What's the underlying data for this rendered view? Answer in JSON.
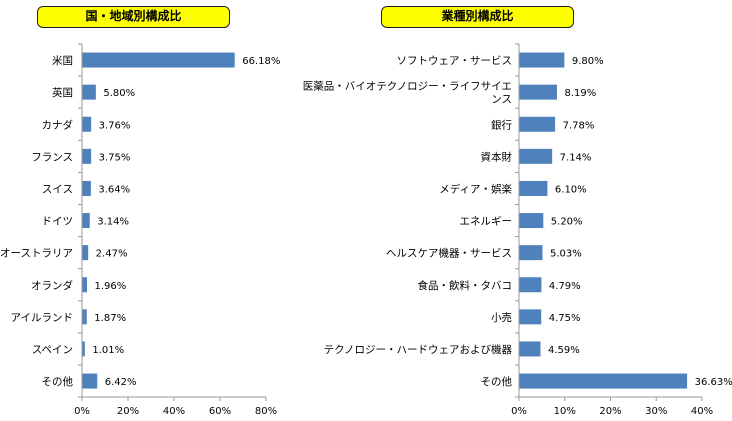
{
  "chart_data": [
    {
      "type": "bar",
      "orientation": "horizontal",
      "title": "国・地域別構成比",
      "categories": [
        "米国",
        "英国",
        "カナダ",
        "フランス",
        "スイス",
        "ドイツ",
        "オーストラリア",
        "オランダ",
        "アイルランド",
        "スペイン",
        "その他"
      ],
      "values": [
        66.18,
        5.8,
        3.76,
        3.75,
        3.64,
        3.14,
        2.47,
        1.96,
        1.87,
        1.01,
        6.42
      ],
      "value_labels": [
        "66.18%",
        "5.80%",
        "3.76%",
        "3.75%",
        "3.64%",
        "3.14%",
        "2.47%",
        "1.96%",
        "1.87%",
        "1.01%",
        "6.42%"
      ],
      "xlim": [
        0,
        80
      ],
      "xticks": [
        0,
        20,
        40,
        60,
        80
      ],
      "xtick_labels": [
        "0%",
        "20%",
        "40%",
        "60%",
        "80%"
      ],
      "grid": false,
      "bar_color": "#4f81bd"
    },
    {
      "type": "bar",
      "orientation": "horizontal",
      "title": "業種別構成比",
      "categories": [
        "ソフトウェア・サービス",
        "医薬品・バイオテクノロジー・ライフサイエンス",
        "銀行",
        "資本財",
        "メディア・娯楽",
        "エネルギー",
        "ヘルスケア機器・サービス",
        "食品・飲料・タバコ",
        "小売",
        "テクノロジー・ハードウェアおよび機器",
        "その他"
      ],
      "category_lines": [
        [
          "ソフトウェア・サービス"
        ],
        [
          "医薬品・バイオテクノロジー・ライフサイエ",
          "ンス"
        ],
        [
          "銀行"
        ],
        [
          "資本財"
        ],
        [
          "メディア・娯楽"
        ],
        [
          "エネルギー"
        ],
        [
          "ヘルスケア機器・サービス"
        ],
        [
          "食品・飲料・タバコ"
        ],
        [
          "小売"
        ],
        [
          "テクノロジー・ハードウェアおよび機器"
        ],
        [
          "その他"
        ]
      ],
      "values": [
        9.8,
        8.19,
        7.78,
        7.14,
        6.1,
        5.2,
        5.03,
        4.79,
        4.75,
        4.59,
        36.63
      ],
      "value_labels": [
        "9.80%",
        "8.19%",
        "7.78%",
        "7.14%",
        "6.10%",
        "5.20%",
        "5.03%",
        "4.79%",
        "4.75%",
        "4.59%",
        "36.63%"
      ],
      "xlim": [
        0,
        40
      ],
      "xticks": [
        0,
        10,
        20,
        30,
        40
      ],
      "xtick_labels": [
        "0%",
        "10%",
        "20%",
        "30%",
        "40%"
      ],
      "grid": false,
      "bar_color": "#4f81bd"
    }
  ]
}
